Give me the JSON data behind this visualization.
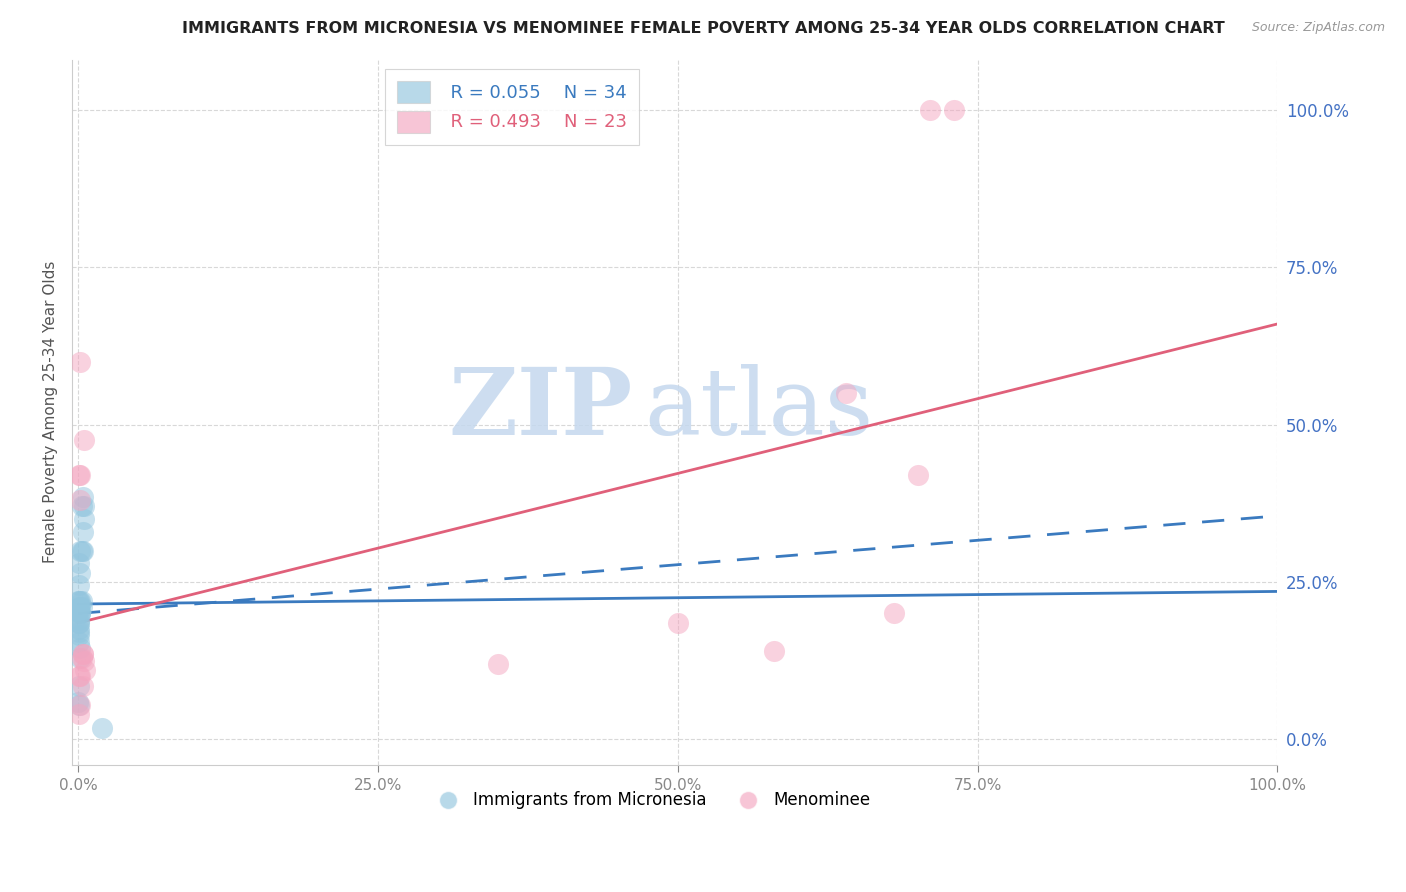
{
  "title": "IMMIGRANTS FROM MICRONESIA VS MENOMINEE FEMALE POVERTY AMONG 25-34 YEAR OLDS CORRELATION CHART",
  "source": "Source: ZipAtlas.com",
  "ylabel": "Female Poverty Among 25-34 Year Olds",
  "xlabel_blue": "Immigrants from Micronesia",
  "xlabel_pink": "Menominee",
  "legend_blue_R": "R = 0.055",
  "legend_blue_N": "N = 34",
  "legend_pink_R": "R = 0.493",
  "legend_pink_N": "N = 23",
  "blue_color": "#92c5de",
  "pink_color": "#f4a6c0",
  "blue_line_color": "#3a7abf",
  "pink_line_color": "#e0607a",
  "blue_scatter": [
    [
      0.001,
      0.28
    ],
    [
      0.002,
      0.3
    ],
    [
      0.001,
      0.245
    ],
    [
      0.003,
      0.3
    ],
    [
      0.003,
      0.37
    ],
    [
      0.004,
      0.385
    ],
    [
      0.005,
      0.37
    ],
    [
      0.005,
      0.35
    ],
    [
      0.004,
      0.33
    ],
    [
      0.004,
      0.3
    ],
    [
      0.002,
      0.265
    ],
    [
      0.001,
      0.22
    ],
    [
      0.002,
      0.2
    ],
    [
      0.001,
      0.21
    ],
    [
      0.0,
      0.22
    ],
    [
      0.001,
      0.19
    ],
    [
      0.002,
      0.21
    ],
    [
      0.001,
      0.185
    ],
    [
      0.002,
      0.2
    ],
    [
      0.002,
      0.22
    ],
    [
      0.003,
      0.22
    ],
    [
      0.003,
      0.21
    ],
    [
      0.002,
      0.2
    ],
    [
      0.001,
      0.185
    ],
    [
      0.001,
      0.175
    ],
    [
      0.001,
      0.165
    ],
    [
      0.001,
      0.155
    ],
    [
      0.002,
      0.145
    ],
    [
      0.002,
      0.13
    ],
    [
      0.001,
      0.085
    ],
    [
      0.0,
      0.06
    ],
    [
      0.001,
      0.055
    ],
    [
      0.02,
      0.018
    ],
    [
      0.0005,
      0.17
    ]
  ],
  "pink_scatter": [
    [
      0.002,
      0.6
    ],
    [
      0.005,
      0.475
    ],
    [
      0.002,
      0.42
    ],
    [
      0.002,
      0.38
    ],
    [
      0.001,
      0.42
    ],
    [
      0.001,
      0.1
    ],
    [
      0.003,
      0.13
    ],
    [
      0.004,
      0.135
    ],
    [
      0.004,
      0.135
    ],
    [
      0.005,
      0.125
    ],
    [
      0.006,
      0.11
    ],
    [
      0.5,
      0.185
    ],
    [
      0.58,
      0.14
    ],
    [
      0.64,
      0.55
    ],
    [
      0.7,
      0.42
    ],
    [
      0.71,
      1.0
    ],
    [
      0.73,
      1.0
    ],
    [
      0.002,
      0.1
    ],
    [
      0.68,
      0.2
    ],
    [
      0.35,
      0.12
    ],
    [
      0.004,
      0.085
    ],
    [
      0.002,
      0.055
    ],
    [
      0.001,
      0.04
    ]
  ],
  "blue_solid_line": [
    0.0,
    1.0,
    0.215,
    0.235
  ],
  "blue_dashed_line": [
    0.0,
    1.0,
    0.2,
    0.355
  ],
  "pink_solid_line": [
    0.0,
    1.0,
    0.185,
    0.66
  ],
  "xlim": [
    -0.005,
    1.0
  ],
  "ylim": [
    -0.04,
    1.08
  ],
  "yticks": [
    0.0,
    0.25,
    0.5,
    0.75,
    1.0
  ],
  "xticks": [
    0.0,
    0.25,
    0.5,
    0.75,
    1.0
  ],
  "background_color": "#ffffff",
  "grid_color": "#d8d8d8",
  "watermark_color": "#c5d8ee",
  "title_fontsize": 11.5,
  "axis_label_fontsize": 11
}
